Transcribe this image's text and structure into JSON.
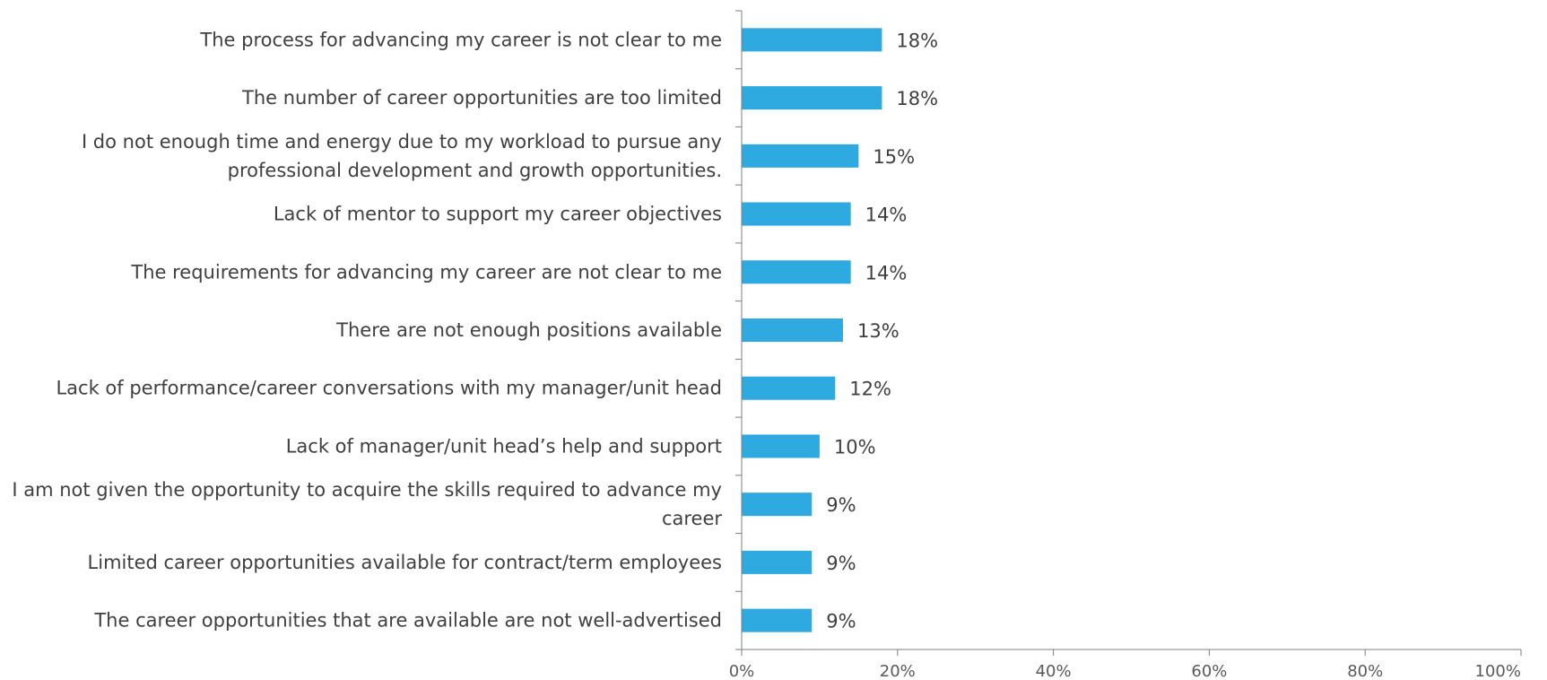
{
  "chart_data": {
    "type": "bar",
    "orientation": "horizontal",
    "categories": [
      "The process for advancing my career is not clear to me",
      "The number of career opportunities are too limited",
      "I do not enough time and energy due to my workload to pursue any professional development and growth opportunities.",
      "Lack of mentor to support my career objectives",
      "The requirements for advancing my career are not clear to me",
      "There are not enough positions available",
      "Lack of performance/career conversations with my manager/unit head",
      "Lack of manager/unit head’s help and support",
      "I am not given the opportunity to acquire the skills required to advance my career",
      "Limited career opportunities available for contract/term employees",
      "The career opportunities that are available are not well-advertised"
    ],
    "category_lines": [
      [
        "The process for advancing my career is not clear to me"
      ],
      [
        "The number of career opportunities are too limited"
      ],
      [
        "I do not enough time and energy due to my workload to pursue any",
        "professional development and growth opportunities."
      ],
      [
        "Lack of mentor to support my career objectives"
      ],
      [
        "The requirements for advancing my career are not clear to me"
      ],
      [
        "There are not enough positions available"
      ],
      [
        "Lack of performance/career conversations with my manager/unit head"
      ],
      [
        "Lack of manager/unit head’s help and support"
      ],
      [
        "I am not given the opportunity to acquire the skills required to advance my",
        "career"
      ],
      [
        "Limited career opportunities available for contract/term employees"
      ],
      [
        "The career opportunities that are available are not well-advertised"
      ]
    ],
    "values": [
      18,
      18,
      15,
      14,
      14,
      13,
      12,
      10,
      9,
      9,
      9
    ],
    "data_labels": [
      "18%",
      "18%",
      "15%",
      "14%",
      "14%",
      "13%",
      "12%",
      "10%",
      "9%",
      "9%",
      "9%"
    ],
    "xlim": [
      0,
      100
    ],
    "xticks": [
      0,
      20,
      40,
      60,
      80,
      100
    ],
    "xtick_labels": [
      "0%",
      "20%",
      "40%",
      "60%",
      "80%",
      "100%"
    ],
    "title": "",
    "xlabel": "",
    "ylabel": "",
    "grid": false,
    "legend": "none",
    "bar_color": "#2eaae1",
    "axis_color": "#7f7f7f",
    "text_color": "#404040"
  }
}
